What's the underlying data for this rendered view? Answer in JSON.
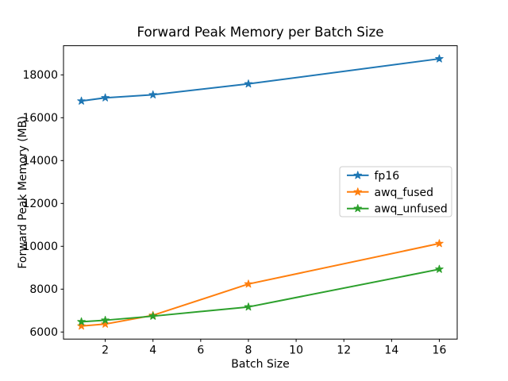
{
  "chart_data": {
    "type": "line",
    "title": "Forward Peak Memory per Batch Size",
    "xlabel": "Batch Size",
    "ylabel": "Forward Peak Memory (MB)",
    "x": [
      1,
      2,
      4,
      8,
      16
    ],
    "series": [
      {
        "name": "fp16",
        "color": "#1f77b4",
        "marker": "star",
        "values": [
          16780,
          16930,
          17070,
          17580,
          18750
        ]
      },
      {
        "name": "awq_fused",
        "color": "#ff7f0e",
        "marker": "star",
        "values": [
          6280,
          6370,
          6780,
          8240,
          10130
        ]
      },
      {
        "name": "awq_unfused",
        "color": "#2ca02c",
        "marker": "star",
        "values": [
          6480,
          6550,
          6740,
          7170,
          8930
        ]
      }
    ],
    "xlim": [
      0.25,
      16.75
    ],
    "ylim": [
      5670,
      19360
    ],
    "xticks": [
      2,
      4,
      6,
      8,
      10,
      12,
      14,
      16
    ],
    "yticks": [
      6000,
      8000,
      10000,
      12000,
      14000,
      16000,
      18000
    ],
    "grid": false,
    "legend_position": "center right"
  }
}
